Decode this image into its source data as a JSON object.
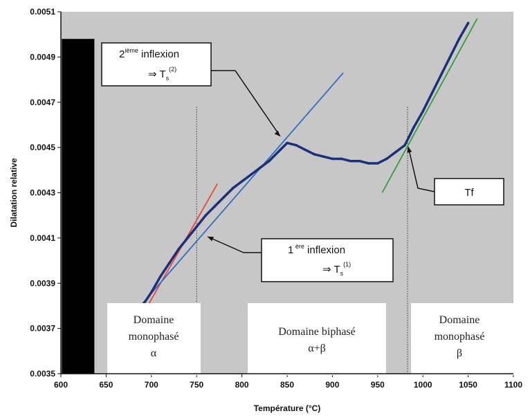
{
  "chart_data": {
    "type": "line",
    "xlabel": "Température (°C)",
    "ylabel": "Dilatation relative",
    "xlim": [
      600,
      1100
    ],
    "ylim": [
      0.0035,
      0.0051
    ],
    "x_ticks": [
      "600",
      "650",
      "700",
      "750",
      "800",
      "850",
      "900",
      "950",
      "1000",
      "1050",
      "1100"
    ],
    "y_ticks": [
      "0.0035",
      "0.0037",
      "0.0039",
      "0.0041",
      "0.0043",
      "0.0045",
      "0.0047",
      "0.0049",
      "0.0051"
    ],
    "grid": false,
    "series": [
      {
        "x": [
          690,
          700,
          710,
          720,
          730,
          740,
          750,
          760,
          770,
          780,
          790,
          800,
          810,
          820,
          830,
          840,
          850,
          860,
          870,
          880,
          890,
          900,
          910,
          920,
          930,
          940,
          950,
          960,
          970,
          980,
          990,
          1000,
          1010,
          1020,
          1030,
          1040,
          1050
        ],
        "y": [
          0.0038,
          0.00386,
          0.00393,
          0.00399,
          0.00405,
          0.0041,
          0.00415,
          0.0042,
          0.00424,
          0.00428,
          0.00432,
          0.00435,
          0.00438,
          0.00441,
          0.00444,
          0.00448,
          0.00452,
          0.00451,
          0.00449,
          0.00447,
          0.00446,
          0.00445,
          0.00445,
          0.00444,
          0.00444,
          0.00443,
          0.00443,
          0.00445,
          0.00448,
          0.00451,
          0.00459,
          0.00466,
          0.00474,
          0.00482,
          0.0049,
          0.00498,
          0.00505
        ]
      }
    ],
    "tangent_lines": [
      {
        "color": "#e8453c",
        "x": [
          693,
          773
        ],
        "y": [
          0.00378,
          0.00434
        ]
      },
      {
        "color": "#2f6fc0",
        "x": [
          690,
          912
        ],
        "y": [
          0.00381,
          0.00483
        ]
      },
      {
        "color": "#2ea03a",
        "x": [
          955,
          1060
        ],
        "y": [
          0.0043,
          0.00507
        ]
      }
    ],
    "vertical_markers": [
      750,
      983
    ],
    "regions": [
      {
        "lines": [
          "Domaine",
          "monophasé",
          "α"
        ]
      },
      {
        "lines": [
          "Domaine biphasé",
          "α+β"
        ]
      },
      {
        "lines": [
          "Domaine",
          "monophasé",
          "β"
        ]
      }
    ],
    "annotations": [
      {
        "name": "second-inflexion",
        "line1_sup_prefix": "2",
        "line1_sup": "ième",
        "line1_text": " inflexion",
        "line2_text": "⇒ T",
        "line2_sub": "s",
        "line2_sup": "(2)"
      },
      {
        "name": "first-inflexion",
        "line1_sup_prefix": "1",
        "line1_sup": " ère",
        "line1_text": " inflexion",
        "line2_text": "⇒ T",
        "line2_sub": "s",
        "line2_sup": "(1)"
      },
      {
        "name": "tf-label",
        "line1_text": "Tf"
      }
    ],
    "colors": {
      "plot_bg": "#c7c7c7",
      "data": "#1c2f7a",
      "left_band": "#000000"
    }
  }
}
